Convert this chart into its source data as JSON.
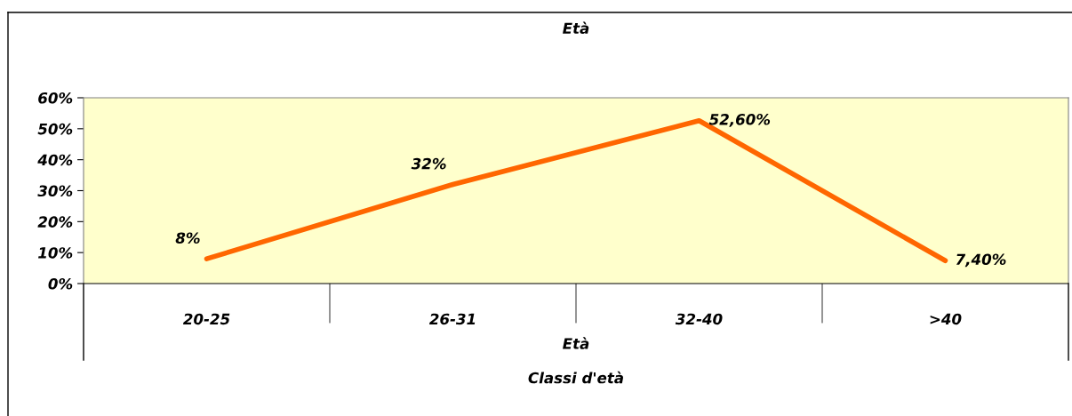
{
  "chart_data": {
    "type": "line",
    "title": "Età",
    "xlabel": "Classi d'età",
    "categories": [
      "20-25",
      "26-31",
      "32-40",
      ">40"
    ],
    "series": [
      {
        "color": "#ff6600",
        "values": [
          8,
          32,
          52.6,
          7.4
        ],
        "value_labels": [
          "8%",
          "32%",
          "52,60%",
          "7,40%"
        ]
      }
    ],
    "ylim": [
      0,
      60
    ],
    "yticks": [
      {
        "value": 0,
        "label": "0%"
      },
      {
        "value": 10,
        "label": "10%"
      },
      {
        "value": 20,
        "label": "20%"
      },
      {
        "value": 30,
        "label": "30%"
      },
      {
        "value": 40,
        "label": "40%"
      },
      {
        "value": 50,
        "label": "50%"
      },
      {
        "value": 60,
        "label": "60%"
      }
    ],
    "annotations": [
      "Età"
    ],
    "grid": false,
    "legend": false,
    "marker": "none",
    "line_style": "solid"
  }
}
